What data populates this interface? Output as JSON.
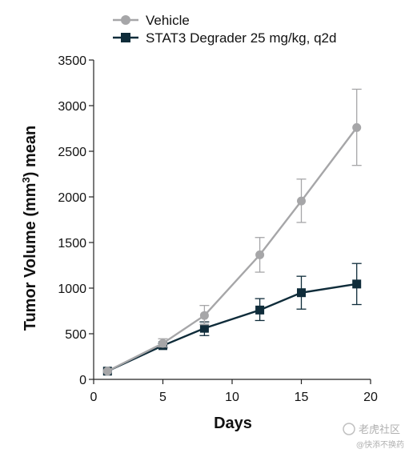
{
  "chart_data": {
    "type": "line",
    "xlabel": "Days",
    "ylabel_main": "Tumor Volume (mm",
    "ylabel_sup": "3",
    "ylabel_tail": ") mean",
    "xlim": [
      0,
      20
    ],
    "ylim": [
      0,
      3500
    ],
    "xticks": [
      0,
      5,
      10,
      15,
      20
    ],
    "yticks": [
      0,
      500,
      1000,
      1500,
      2000,
      2500,
      3000,
      3500
    ],
    "grid": false,
    "legend_position": "top-left",
    "series": [
      {
        "name": "Vehicle",
        "color": "#a6a6a8",
        "marker": "circle",
        "x": [
          1,
          5,
          8,
          12,
          15,
          19
        ],
        "y": [
          90,
          395,
          700,
          1365,
          1955,
          2760
        ],
        "err_low": [
          90,
          355,
          600,
          1175,
          1720,
          2345
        ],
        "err_high": [
          90,
          445,
          810,
          1555,
          2195,
          3180
        ]
      },
      {
        "name": "STAT3 Degrader 25 mg/kg, q2d",
        "color": "#0f2c3a",
        "marker": "square",
        "x": [
          1,
          5,
          8,
          12,
          15,
          19
        ],
        "y": [
          90,
          370,
          560,
          760,
          950,
          1045
        ],
        "err_low": [
          90,
          345,
          480,
          645,
          770,
          820
        ],
        "err_high": [
          90,
          395,
          630,
          885,
          1130,
          1270
        ]
      }
    ]
  },
  "watermark": {
    "line1": "老虎社区",
    "line2": "@快添不换药"
  }
}
